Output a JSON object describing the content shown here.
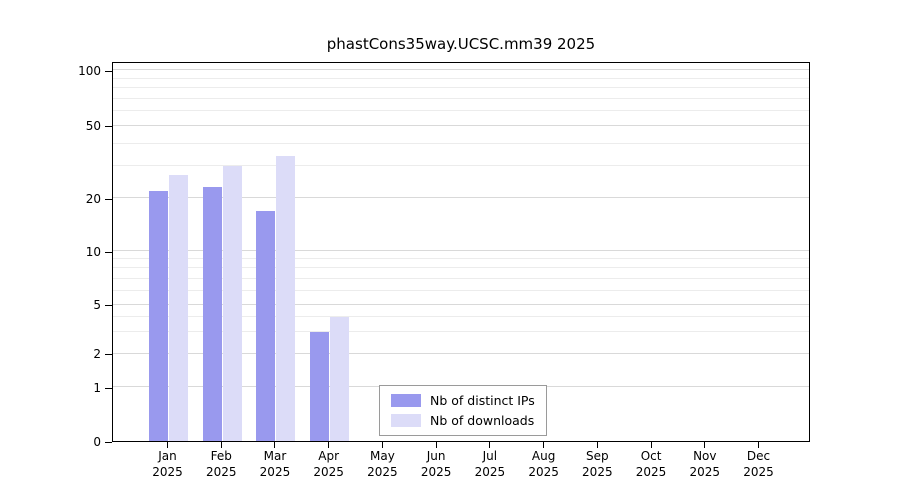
{
  "chart_data": {
    "type": "bar",
    "title": "phastCons35way.UCSC.mm39 2025",
    "x_year": "2025",
    "categories": [
      "Jan",
      "Feb",
      "Mar",
      "Apr",
      "May",
      "Jun",
      "Jul",
      "Aug",
      "Sep",
      "Oct",
      "Nov",
      "Dec"
    ],
    "series": [
      {
        "name": "Nb of distinct IPs",
        "color": "#9999ee",
        "values": [
          22,
          23,
          17,
          3,
          0,
          0,
          0,
          0,
          0,
          0,
          0,
          0
        ]
      },
      {
        "name": "Nb of downloads",
        "color": "#dcdcf8",
        "values": [
          27,
          30,
          34,
          4,
          0,
          0,
          0,
          0,
          0,
          0,
          0,
          0
        ]
      }
    ],
    "yscale": "log-like",
    "ylim": [
      0,
      112
    ],
    "y_ticks": [
      0,
      1,
      2,
      5,
      10,
      20,
      50,
      100
    ],
    "y_minor_ticks": [
      3,
      4,
      6,
      7,
      8,
      9,
      30,
      40,
      60,
      70,
      80,
      90
    ],
    "grid": true,
    "legend_position": "bottom-center"
  },
  "colors": {
    "axis": "#000000",
    "grid_major": "#d9d9d9",
    "grid_minor": "#ececec",
    "background": "#ffffff"
  }
}
